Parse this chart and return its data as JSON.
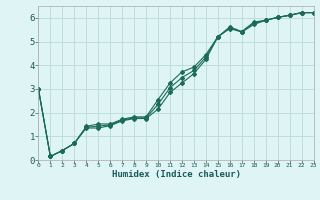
{
  "xlabel": "Humidex (Indice chaleur)",
  "background_color": "#dff4f4",
  "grid_color": "#b8dada",
  "line_color": "#1a6b5a",
  "x": [
    0,
    1,
    2,
    3,
    4,
    5,
    6,
    7,
    8,
    9,
    10,
    11,
    12,
    13,
    14,
    15,
    16,
    17,
    18,
    19,
    20,
    21,
    22,
    23
  ],
  "y_line1": [
    3.0,
    0.15,
    0.4,
    0.7,
    1.35,
    1.35,
    1.45,
    1.65,
    1.75,
    1.75,
    2.15,
    2.85,
    3.25,
    3.65,
    4.25,
    5.2,
    5.55,
    5.4,
    5.72,
    5.9,
    6.02,
    6.1,
    6.22,
    6.22
  ],
  "y_line2": [
    3.0,
    0.15,
    0.4,
    0.7,
    1.42,
    1.52,
    1.52,
    1.72,
    1.82,
    1.82,
    2.55,
    3.25,
    3.72,
    3.92,
    4.45,
    5.2,
    5.62,
    5.42,
    5.82,
    5.9,
    6.02,
    6.12,
    6.22,
    6.22
  ],
  "y_line3": [
    3.0,
    0.15,
    0.4,
    0.7,
    1.38,
    1.43,
    1.48,
    1.68,
    1.78,
    1.78,
    2.35,
    3.05,
    3.48,
    3.78,
    4.35,
    5.2,
    5.58,
    5.41,
    5.77,
    5.9,
    6.02,
    6.11,
    6.22,
    6.22
  ],
  "xlim": [
    0,
    23
  ],
  "ylim": [
    0,
    6.5
  ],
  "xticks": [
    0,
    1,
    2,
    3,
    4,
    5,
    6,
    7,
    8,
    9,
    10,
    11,
    12,
    13,
    14,
    15,
    16,
    17,
    18,
    19,
    20,
    21,
    22,
    23
  ],
  "yticks": [
    0,
    1,
    2,
    3,
    4,
    5,
    6
  ]
}
